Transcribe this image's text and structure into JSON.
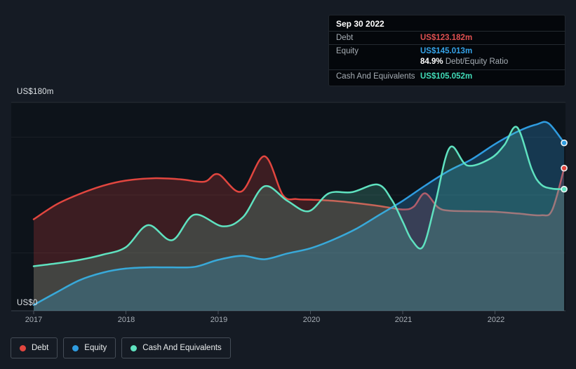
{
  "y_axis": {
    "top_label": "US$180m",
    "zero_label": "US$0"
  },
  "x_axis": {
    "ticks": [
      "2017",
      "2018",
      "2019",
      "2020",
      "2021",
      "2022"
    ]
  },
  "tooltip": {
    "date": "Sep 30 2022",
    "rows": [
      {
        "label": "Debt",
        "value": "US$123.182m",
        "color": "#e05050"
      },
      {
        "label": "Equity",
        "value": "US$145.013m",
        "color": "#35a3e8"
      },
      {
        "label": "Cash And Equivalents",
        "value": "US$105.052m",
        "color": "#41dcb8"
      }
    ],
    "ratio_value": "84.9%",
    "ratio_label": "Debt/Equity Ratio"
  },
  "legend": [
    {
      "label": "Debt",
      "color": "#e2463f"
    },
    {
      "label": "Equity",
      "color": "#2f9ce0"
    },
    {
      "label": "Cash And Equivalents",
      "color": "#5fe2c0"
    }
  ],
  "chart_data": {
    "type": "area",
    "title": "Debt to Equity History",
    "x_unit": "year",
    "y_unit": "US$ millions",
    "y_min": 0,
    "y_max": 180,
    "gridline_values": [
      180,
      150,
      100,
      50,
      0
    ],
    "x_ticks": [
      2017,
      2018,
      2019,
      2020,
      2021,
      2022
    ],
    "x_end": 2022.75,
    "as_of": "Sep 30 2022",
    "debt_equity_ratio_pct": 84.9,
    "series": [
      {
        "name": "Debt",
        "color": "#e2463f",
        "fill": "rgba(226,70,63,0.22)",
        "end_value": 123.182,
        "points": [
          [
            2017.0,
            79
          ],
          [
            2017.25,
            92
          ],
          [
            2017.5,
            101
          ],
          [
            2017.75,
            108
          ],
          [
            2018.0,
            112.5
          ],
          [
            2018.3,
            114.5
          ],
          [
            2018.6,
            113.5
          ],
          [
            2018.85,
            111.5
          ],
          [
            2019.0,
            118
          ],
          [
            2019.25,
            103
          ],
          [
            2019.5,
            133.5
          ],
          [
            2019.7,
            100
          ],
          [
            2019.85,
            96.5
          ],
          [
            2020.0,
            96
          ],
          [
            2020.25,
            95
          ],
          [
            2020.5,
            93
          ],
          [
            2020.75,
            90.5
          ],
          [
            2021.0,
            87.5
          ],
          [
            2021.12,
            90
          ],
          [
            2021.24,
            101.5
          ],
          [
            2021.38,
            89.5
          ],
          [
            2021.5,
            86.5
          ],
          [
            2021.75,
            86
          ],
          [
            2022.0,
            85.5
          ],
          [
            2022.25,
            84
          ],
          [
            2022.5,
            82.5
          ],
          [
            2022.62,
            87
          ],
          [
            2022.75,
            123.182
          ]
        ]
      },
      {
        "name": "Equity",
        "color": "#2f9ce0",
        "fill": "rgba(47,156,224,0.28)",
        "end_value": 145.013,
        "points": [
          [
            2017.0,
            5
          ],
          [
            2017.25,
            16
          ],
          [
            2017.5,
            26.5
          ],
          [
            2017.75,
            33
          ],
          [
            2018.0,
            36.5
          ],
          [
            2018.25,
            37.5
          ],
          [
            2018.5,
            37.5
          ],
          [
            2018.75,
            38
          ],
          [
            2019.0,
            44
          ],
          [
            2019.26,
            47.5
          ],
          [
            2019.5,
            44.5
          ],
          [
            2019.75,
            49.5
          ],
          [
            2020.0,
            54
          ],
          [
            2020.25,
            61.5
          ],
          [
            2020.5,
            71
          ],
          [
            2020.75,
            83
          ],
          [
            2021.0,
            95
          ],
          [
            2021.25,
            108.5
          ],
          [
            2021.5,
            121
          ],
          [
            2021.75,
            131
          ],
          [
            2022.0,
            144
          ],
          [
            2022.25,
            155
          ],
          [
            2022.45,
            161
          ],
          [
            2022.58,
            162
          ],
          [
            2022.75,
            145.013
          ]
        ]
      },
      {
        "name": "Cash And Equivalents",
        "color": "#5fe2c0",
        "fill": "rgba(95,226,192,0.20)",
        "end_value": 105.052,
        "points": [
          [
            2017.0,
            38.5
          ],
          [
            2017.25,
            41
          ],
          [
            2017.5,
            44
          ],
          [
            2017.75,
            48.5
          ],
          [
            2018.0,
            55
          ],
          [
            2018.24,
            74
          ],
          [
            2018.5,
            61
          ],
          [
            2018.74,
            83
          ],
          [
            2019.05,
            73
          ],
          [
            2019.27,
            81
          ],
          [
            2019.5,
            107.5
          ],
          [
            2019.75,
            95
          ],
          [
            2019.98,
            86
          ],
          [
            2020.2,
            101.5
          ],
          [
            2020.45,
            102.5
          ],
          [
            2020.73,
            109
          ],
          [
            2020.88,
            96
          ],
          [
            2021.0,
            77
          ],
          [
            2021.1,
            61
          ],
          [
            2021.22,
            55.5
          ],
          [
            2021.35,
            92
          ],
          [
            2021.51,
            141
          ],
          [
            2021.7,
            125.5
          ],
          [
            2021.95,
            131.5
          ],
          [
            2022.1,
            143
          ],
          [
            2022.24,
            158.5
          ],
          [
            2022.4,
            122
          ],
          [
            2022.5,
            109
          ],
          [
            2022.62,
            105.5
          ],
          [
            2022.75,
            105.052
          ]
        ]
      }
    ]
  }
}
